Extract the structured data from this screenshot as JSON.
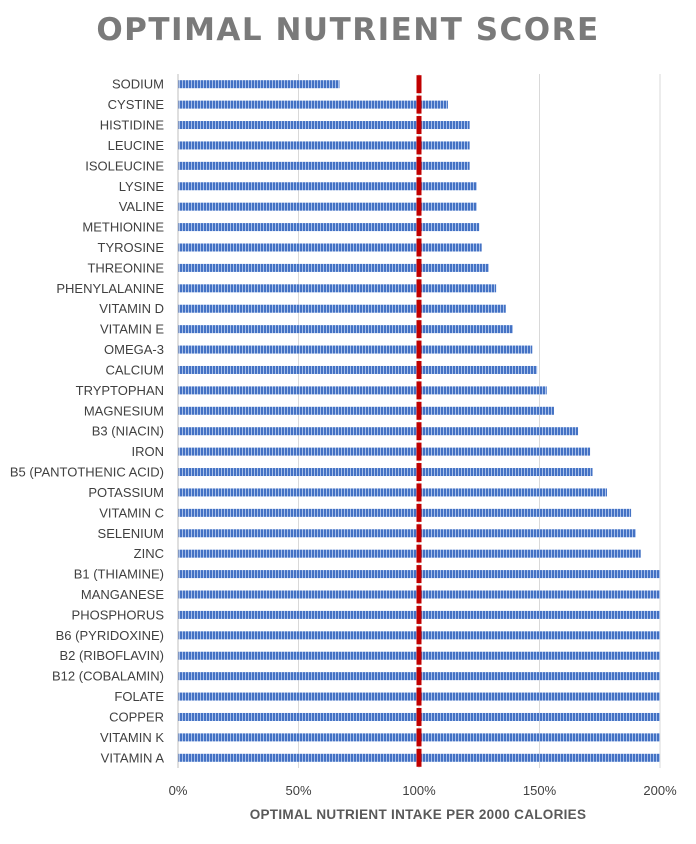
{
  "chart_data": {
    "type": "bar",
    "orientation": "horizontal",
    "title": "OPTIMAL NUTRIENT SCORE",
    "xlabel": "OPTIMAL NUTRIENT INTAKE PER 2000 CALORIES",
    "ylabel": "",
    "xlim": [
      0,
      200
    ],
    "x_ticks": [
      0,
      50,
      100,
      150,
      200
    ],
    "x_tick_labels": [
      "0%",
      "50%",
      "100%",
      "150%",
      "200%"
    ],
    "grid": "vertical",
    "reference_line": 100,
    "colors": {
      "bar": "#4472c4",
      "reference": "#c00000",
      "grid": "#d9d9d9",
      "title": "#7a7a7a"
    },
    "categories": [
      "SODIUM",
      "CYSTINE",
      "HISTIDINE",
      "LEUCINE",
      "ISOLEUCINE",
      "LYSINE",
      "VALINE",
      "METHIONINE",
      "TYROSINE",
      "THREONINE",
      "PHENYLALANINE",
      "VITAMIN D",
      "VITAMIN E",
      "OMEGA-3",
      "CALCIUM",
      "TRYPTOPHAN",
      "MAGNESIUM",
      "B3 (NIACIN)",
      "IRON",
      "B5 (PANTOTHENIC ACID)",
      "POTASSIUM",
      "VITAMIN C",
      "SELENIUM",
      "ZINC",
      "B1 (THIAMINE)",
      "MANGANESE",
      "PHOSPHORUS",
      "B6 (PYRIDOXINE)",
      "B2 (RIBOFLAVIN)",
      "B12 (COBALAMIN)",
      "FOLATE",
      "COPPER",
      "VITAMIN K",
      "VITAMIN A"
    ],
    "values": [
      67,
      112,
      121,
      121,
      121,
      124,
      124,
      125,
      126,
      129,
      132,
      136,
      139,
      147,
      149,
      153,
      156,
      166,
      171,
      172,
      178,
      188,
      190,
      192,
      200,
      200,
      200,
      200,
      200,
      200,
      200,
      200,
      200,
      200
    ]
  }
}
